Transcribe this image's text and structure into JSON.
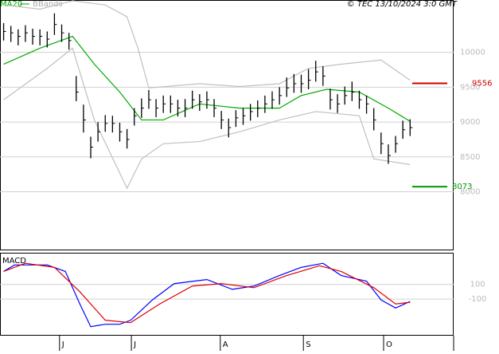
{
  "chart_data": [
    {
      "type": "ohlc",
      "source": "© TEC 13/10/2024 3:0 GMT",
      "x": [
        0,
        2,
        4,
        6,
        8,
        10,
        12,
        14,
        16,
        18,
        20,
        22,
        24,
        26,
        28,
        30,
        32,
        34,
        36,
        38,
        40,
        42,
        44,
        46,
        48,
        50,
        52,
        54,
        56,
        58,
        60,
        62,
        64,
        66,
        68,
        70,
        72,
        74,
        76,
        78,
        80,
        82,
        84,
        86,
        88,
        90,
        92,
        94,
        96,
        98,
        100,
        102,
        104,
        106,
        108,
        110,
        112
      ],
      "high": [
        10420,
        10380,
        10330,
        10390,
        10340,
        10330,
        10300,
        10560,
        10400,
        10280,
        9660,
        9250,
        8790,
        9000,
        9100,
        9090,
        8990,
        8900,
        9200,
        9340,
        9460,
        9330,
        9380,
        9380,
        9320,
        9330,
        9450,
        9400,
        9440,
        9330,
        9160,
        9050,
        9170,
        9200,
        9260,
        9310,
        9380,
        9440,
        9500,
        9640,
        9690,
        9680,
        9760,
        9880,
        9800,
        9480,
        9400,
        9510,
        9580,
        9450,
        9380,
        9200,
        8850,
        8680,
        8800,
        9020,
        9040
      ],
      "low": [
        10170,
        10150,
        10100,
        10150,
        10110,
        10100,
        10070,
        10250,
        10150,
        10040,
        9300,
        8850,
        8480,
        8720,
        8860,
        8850,
        8720,
        8620,
        8950,
        9060,
        9190,
        9070,
        9130,
        9130,
        9080,
        9070,
        9190,
        9160,
        9190,
        9070,
        8900,
        8780,
        8930,
        8960,
        9020,
        9070,
        9130,
        9190,
        9250,
        9360,
        9420,
        9420,
        9470,
        9580,
        9520,
        9180,
        9130,
        9250,
        9300,
        9190,
        9120,
        8880,
        8540,
        8400,
        8560,
        8760,
        8800
      ],
      "close": [
        10300,
        10280,
        10230,
        10280,
        10230,
        10230,
        10190,
        10400,
        10280,
        10170,
        9430,
        9030,
        8640,
        8860,
        8980,
        8980,
        8860,
        8750,
        9090,
        9200,
        9320,
        9200,
        9260,
        9260,
        9200,
        9200,
        9320,
        9290,
        9320,
        9200,
        9030,
        8920,
        9060,
        9090,
        9150,
        9200,
        9260,
        9320,
        9380,
        9490,
        9550,
        9550,
        9600,
        9720,
        9660,
        9320,
        9260,
        9380,
        9430,
        9320,
        9260,
        9030,
        8690,
        8520,
        8690,
        8890,
        8920
      ],
      "bar_color": "#000000",
      "series": [
        {
          "name": "MA20",
          "color": "#00aa00",
          "x": [
            0,
            10,
            19,
            25,
            32,
            38,
            44,
            54,
            65,
            76,
            82,
            89,
            98,
            106,
            112
          ],
          "values": [
            9830,
            10060,
            10230,
            9830,
            9430,
            9030,
            9030,
            9260,
            9200,
            9200,
            9380,
            9470,
            9430,
            9200,
            9010
          ]
        },
        {
          "name": "BBands",
          "color": "#c0c0c0",
          "x": [
            0,
            10,
            19,
            28,
            34,
            37,
            40,
            54,
            65,
            76,
            84,
            93,
            104,
            112
          ],
          "values": [
            10680,
            10620,
            10740,
            10680,
            10510,
            10060,
            9490,
            9550,
            9510,
            9550,
            9770,
            9830,
            9890,
            9600
          ]
        },
        {
          "color": "#c0c0c0",
          "x": [
            0,
            12,
            19,
            25,
            34,
            38,
            44,
            54,
            65,
            76,
            86,
            98,
            102,
            112
          ],
          "values": [
            9320,
            9770,
            10060,
            9030,
            8050,
            8470,
            8690,
            8720,
            8860,
            9030,
            9150,
            9090,
            8470,
            8390
          ]
        }
      ],
      "levels": [
        {
          "value": 9556,
          "color": "#cc0000"
        },
        {
          "value": 8073,
          "color": "#009900"
        }
      ],
      "xlim": [
        -1,
        124
      ],
      "ylim": [
        7170,
        10740
      ],
      "yticks": [
        10000,
        9500,
        9000,
        8500,
        8000
      ],
      "grid": true
    },
    {
      "type": "line",
      "title": "MACD",
      "series": [
        {
          "color": "#0000ff",
          "x": [
            0,
            3,
            12,
            17,
            21,
            24,
            28,
            32,
            35,
            41,
            47,
            56,
            63,
            69,
            76,
            82,
            88,
            93,
            100,
            104,
            108,
            112
          ],
          "values": [
            278,
            366,
            366,
            278,
            -167,
            -477,
            -444,
            -444,
            -389,
            -111,
            111,
            167,
            33,
            78,
            222,
            333,
            389,
            222,
            144,
            -111,
            -222,
            -133
          ]
        },
        {
          "color": "#dd0000",
          "x": [
            0,
            6,
            14,
            21,
            28,
            35,
            43,
            52,
            60,
            69,
            78,
            87,
            93,
            102,
            108,
            112
          ],
          "values": [
            278,
            389,
            333,
            0,
            -389,
            -422,
            -167,
            78,
            111,
            56,
            222,
            355,
            278,
            56,
            -167,
            -144
          ]
        }
      ],
      "xlim": [
        -1,
        124
      ],
      "ylim": [
        -589,
        522
      ],
      "yticks": [
        100,
        -100
      ],
      "xticks": [
        {
          "value": 15.4,
          "label": "J"
        },
        {
          "value": 35.2,
          "label": "J"
        },
        {
          "value": 59.7,
          "label": "A"
        },
        {
          "value": 82.6,
          "label": "S"
        },
        {
          "value": 104.7,
          "label": "O"
        }
      ]
    }
  ]
}
